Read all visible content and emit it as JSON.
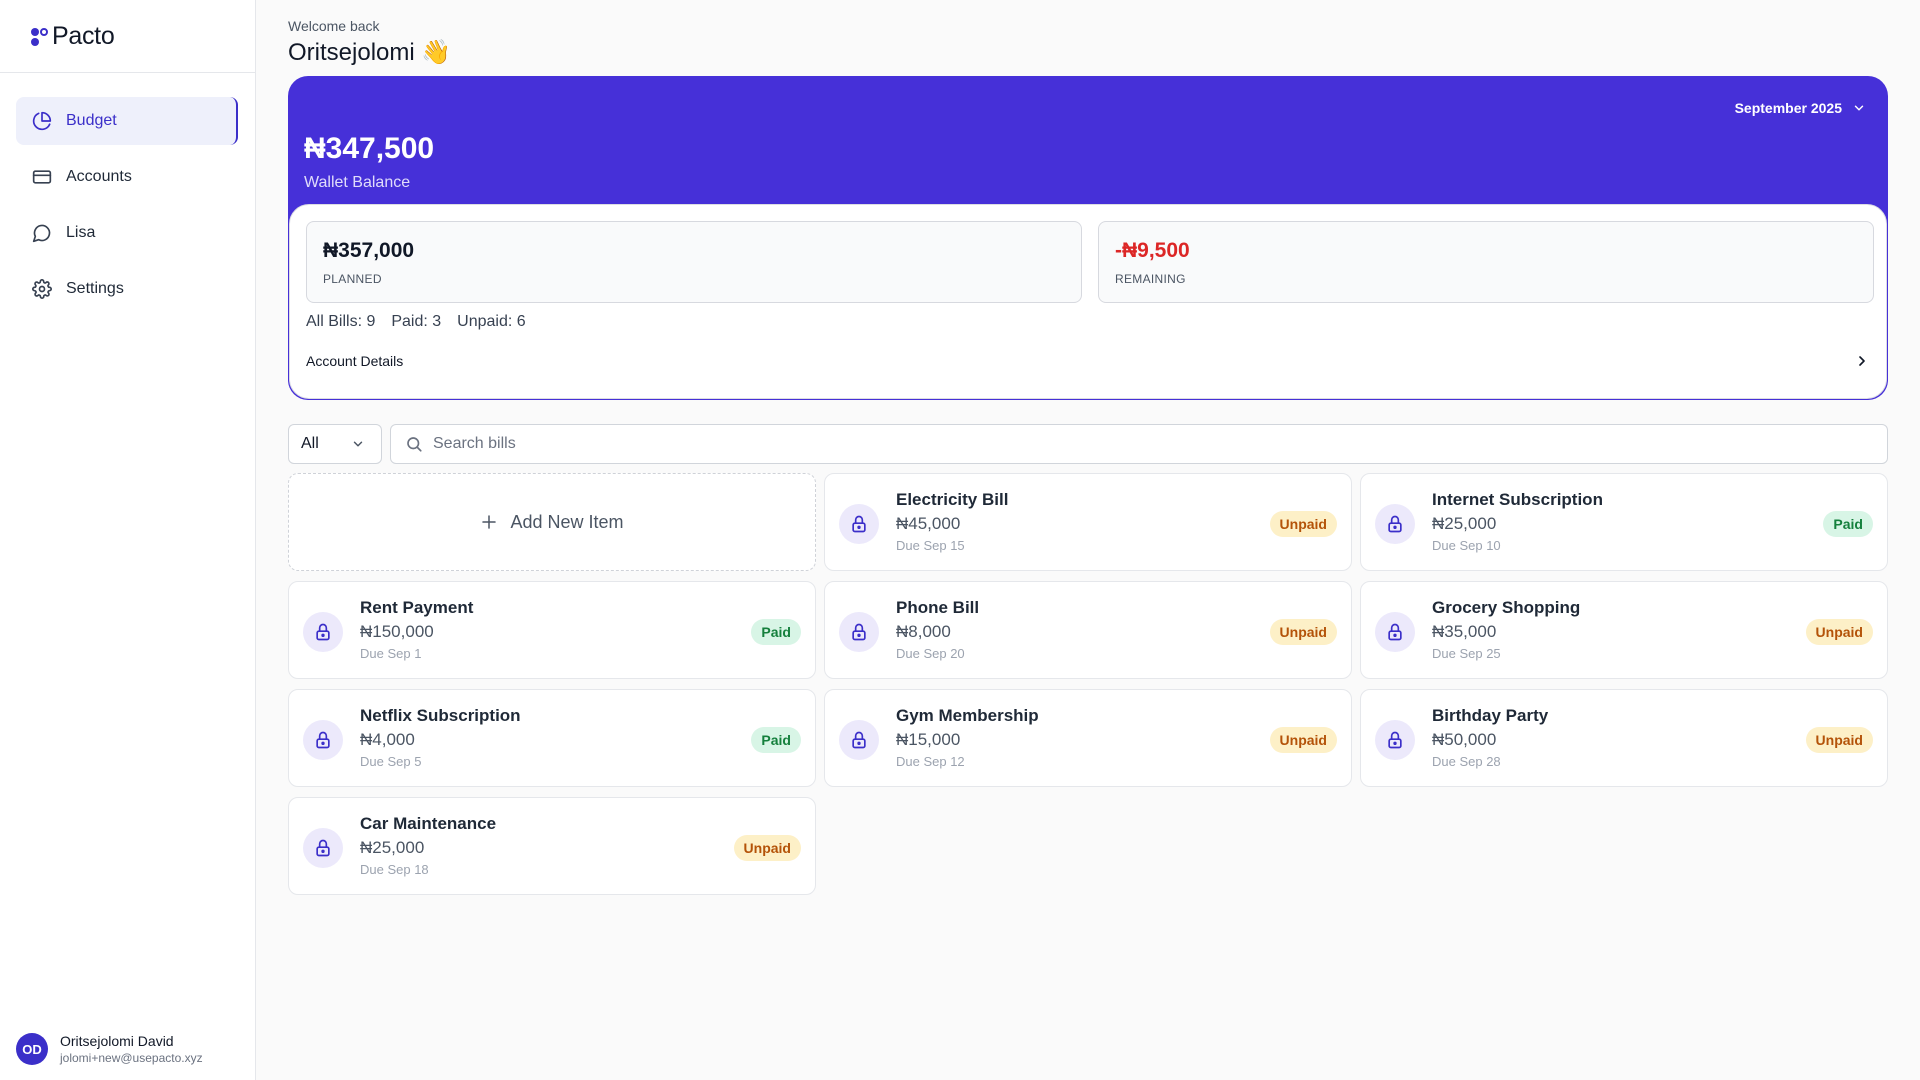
{
  "app": {
    "name": "Pacto"
  },
  "sidebar": {
    "items": [
      {
        "label": "Budget",
        "icon": "pie-chart-icon",
        "active": true
      },
      {
        "label": "Accounts",
        "icon": "credit-card-icon",
        "active": false
      },
      {
        "label": "Lisa",
        "icon": "chat-bubble-icon",
        "active": false
      },
      {
        "label": "Settings",
        "icon": "gear-icon",
        "active": false
      }
    ],
    "user": {
      "initials": "OD",
      "name": "Oritsejolomi David",
      "email": "jolomi+new@usepacto.xyz"
    }
  },
  "header": {
    "welcome": "Welcome back",
    "username": "Oritsejolomi 👋"
  },
  "wallet": {
    "month": "September 2025",
    "balance": "₦347,500",
    "balance_label": "Wallet Balance",
    "planned_value": "₦357,000",
    "planned_label": "PLANNED",
    "remaining_value": "-₦9,500",
    "remaining_label": "REMAINING",
    "all_bills": "All Bills: 9",
    "paid": "Paid: 3",
    "unpaid": "Unpaid: 6",
    "account_details": "Account Details"
  },
  "filters": {
    "selected": "All",
    "search_placeholder": "Search bills"
  },
  "add_item_label": "Add New Item",
  "bills": [
    {
      "name": "Electricity Bill",
      "amount": "₦45,000",
      "due": "Due Sep 15",
      "status": "Unpaid"
    },
    {
      "name": "Internet Subscription",
      "amount": "₦25,000",
      "due": "Due Sep 10",
      "status": "Paid"
    },
    {
      "name": "Rent Payment",
      "amount": "₦150,000",
      "due": "Due Sep 1",
      "status": "Paid"
    },
    {
      "name": "Phone Bill",
      "amount": "₦8,000",
      "due": "Due Sep 20",
      "status": "Unpaid"
    },
    {
      "name": "Grocery Shopping",
      "amount": "₦35,000",
      "due": "Due Sep 25",
      "status": "Unpaid"
    },
    {
      "name": "Netflix Subscription",
      "amount": "₦4,000",
      "due": "Due Sep 5",
      "status": "Paid"
    },
    {
      "name": "Gym Membership",
      "amount": "₦15,000",
      "due": "Due Sep 12",
      "status": "Unpaid"
    },
    {
      "name": "Birthday Party",
      "amount": "₦50,000",
      "due": "Due Sep 28",
      "status": "Unpaid"
    },
    {
      "name": "Car Maintenance",
      "amount": "₦25,000",
      "due": "Due Sep 18",
      "status": "Unpaid"
    }
  ],
  "colors": {
    "brand": "#4630d8",
    "paid_bg": "#d8f5e6",
    "paid_text": "#15803d",
    "unpaid_bg": "#fdf0c7",
    "unpaid_text": "#b45309",
    "negative": "#dc2626"
  }
}
